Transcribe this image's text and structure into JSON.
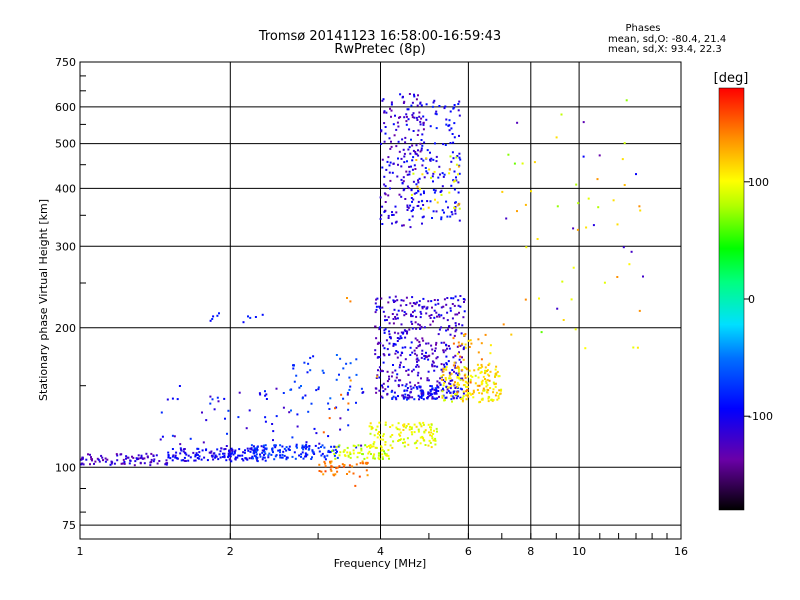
{
  "chart_data": {
    "type": "scatter",
    "title": "Tromsø 20141123 16:58:00-16:59:43",
    "subtitle": "RwPretec (8p)",
    "xlabel": "Frequency [MHz]",
    "ylabel": "Stationary phase Virtual Height [km]",
    "x_scale": "log",
    "y_scale": "log",
    "xlim": [
      1,
      16
    ],
    "ylim": [
      70,
      750
    ],
    "x_ticks": [
      1,
      2,
      4,
      6,
      8,
      10,
      16
    ],
    "x_tick_labels": [
      "1",
      "2",
      "4",
      "6",
      "8",
      "10",
      "16"
    ],
    "y_ticks": [
      75,
      100,
      200,
      300,
      400,
      500,
      600,
      750
    ],
    "y_tick_labels": [
      "75",
      "100",
      "200",
      "300",
      "400",
      "500",
      "600",
      "750"
    ],
    "grid": true,
    "phase_info": {
      "title": "Phases",
      "line_o": "mean, sd,O: -80.4, 21.4",
      "line_x": "mean, sd,X:  93.4, 22.3"
    },
    "colorbar": {
      "label": "[deg]",
      "range": [
        -180,
        180
      ],
      "ticks": [
        100,
        0,
        -100
      ],
      "tick_labels": [
        "100",
        "0",
        "-100"
      ]
    },
    "clusters": [
      {
        "f": [
          1.0,
          1.5
        ],
        "h": [
          101,
          107
        ],
        "phase": [
          -140,
          -100
        ],
        "n": 90
      },
      {
        "f": [
          1.5,
          2.4
        ],
        "h": [
          103,
          110
        ],
        "phase": [
          -120,
          -80
        ],
        "n": 150
      },
      {
        "f": [
          2.2,
          3.3
        ],
        "h": [
          104,
          112
        ],
        "phase": [
          -100,
          -60
        ],
        "n": 130
      },
      {
        "f": [
          1.4,
          3.8
        ],
        "h": [
          110,
          150
        ],
        "phase": [
          -130,
          -70
        ],
        "n": 70
      },
      {
        "f": [
          2.6,
          3.6
        ],
        "h": [
          130,
          175
        ],
        "phase": [
          -90,
          -50
        ],
        "n": 40
      },
      {
        "f": [
          3.2,
          4.2
        ],
        "h": [
          104,
          112
        ],
        "phase": [
          70,
          110
        ],
        "n": 70
      },
      {
        "f": [
          3.0,
          3.8
        ],
        "h": [
          96,
          103
        ],
        "phase": [
          130,
          160
        ],
        "n": 40
      },
      {
        "f": [
          3.8,
          5.2
        ],
        "h": [
          110,
          125
        ],
        "phase": [
          80,
          115
        ],
        "n": 110
      },
      {
        "f": [
          3.9,
          5.9
        ],
        "h": [
          140,
          235
        ],
        "phase": [
          -140,
          -90
        ],
        "n": 420
      },
      {
        "f": [
          4.2,
          5.8
        ],
        "h": [
          140,
          150
        ],
        "phase": [
          -120,
          -70
        ],
        "n": 90
      },
      {
        "f": [
          5.3,
          7.0
        ],
        "h": [
          138,
          165
        ],
        "phase": [
          85,
          130
        ],
        "n": 150
      },
      {
        "f": [
          5.6,
          6.7
        ],
        "h": [
          145,
          195
        ],
        "phase": [
          100,
          150
        ],
        "n": 60
      },
      {
        "f": [
          4.0,
          4.9
        ],
        "h": [
          330,
          640
        ],
        "phase": [
          -140,
          -90
        ],
        "n": 170
      },
      {
        "f": [
          4.5,
          5.8
        ],
        "h": [
          340,
          620
        ],
        "phase": [
          -120,
          -80
        ],
        "n": 150
      },
      {
        "f": [
          4.6,
          5.8
        ],
        "h": [
          360,
          470
        ],
        "phase": [
          80,
          130
        ],
        "n": 30
      },
      {
        "f": [
          7.0,
          13.5
        ],
        "h": [
          180,
          620
        ],
        "phase": [
          60,
          140
        ],
        "n": 45
      },
      {
        "f": [
          7.0,
          13.5
        ],
        "h": [
          200,
          570
        ],
        "phase": [
          -140,
          -90
        ],
        "n": 12
      },
      {
        "f": [
          1.8,
          2.4
        ],
        "h": [
          205,
          215
        ],
        "phase": [
          -100,
          -70
        ],
        "n": 10
      },
      {
        "f": [
          3.0,
          4.0
        ],
        "h": [
          90,
          250
        ],
        "phase": [
          120,
          160
        ],
        "n": 12
      }
    ]
  }
}
